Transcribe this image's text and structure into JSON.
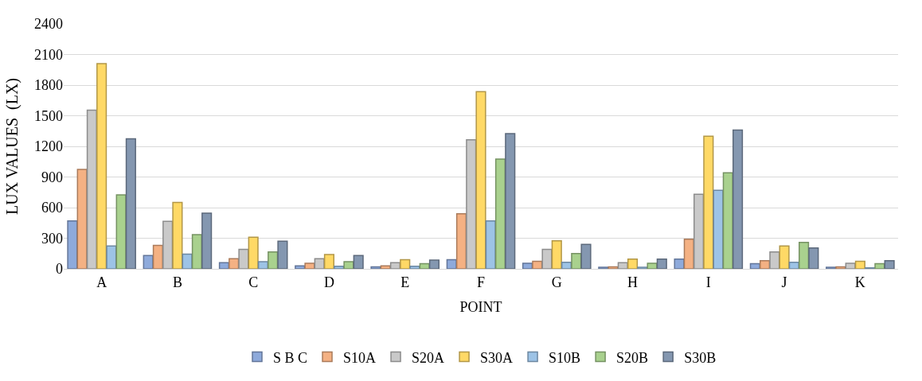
{
  "chart_data": {
    "type": "bar",
    "xlabel": "POINT",
    "ylabel": "LUX VALUES  (LX)",
    "categories": [
      "A",
      "B",
      "C",
      "D",
      "E",
      "F",
      "G",
      "H",
      "I",
      "J",
      "K"
    ],
    "series": [
      {
        "name": "S B C",
        "color": "#8eaadb",
        "values": [
          470,
          130,
          60,
          30,
          20,
          90,
          55,
          15,
          95,
          50,
          15
        ]
      },
      {
        "name": "S10A",
        "color": "#f4b183",
        "values": [
          975,
          230,
          100,
          55,
          30,
          540,
          75,
          20,
          290,
          80,
          20
        ]
      },
      {
        "name": "S20A",
        "color": "#c9c9c9",
        "values": [
          1555,
          465,
          190,
          100,
          60,
          1265,
          190,
          60,
          730,
          165,
          55
        ]
      },
      {
        "name": "S30A",
        "color": "#ffd966",
        "values": [
          2010,
          650,
          310,
          140,
          90,
          1735,
          275,
          95,
          1300,
          225,
          75
        ]
      },
      {
        "name": "S10B",
        "color": "#9dc3e6",
        "values": [
          225,
          145,
          70,
          25,
          25,
          470,
          65,
          15,
          770,
          65,
          10
        ]
      },
      {
        "name": "S20B",
        "color": "#a9d18e",
        "values": [
          725,
          335,
          165,
          70,
          50,
          1075,
          150,
          55,
          940,
          260,
          50
        ]
      },
      {
        "name": "S30B",
        "color": "#8497b0",
        "values": [
          1275,
          545,
          270,
          130,
          85,
          1325,
          240,
          95,
          1360,
          205,
          80
        ]
      }
    ],
    "ylim": [
      0,
      2400
    ],
    "yticks": [
      0,
      300,
      600,
      900,
      1200,
      1500,
      1800,
      2100,
      2400
    ],
    "grid": "y",
    "legend": "bottom"
  }
}
